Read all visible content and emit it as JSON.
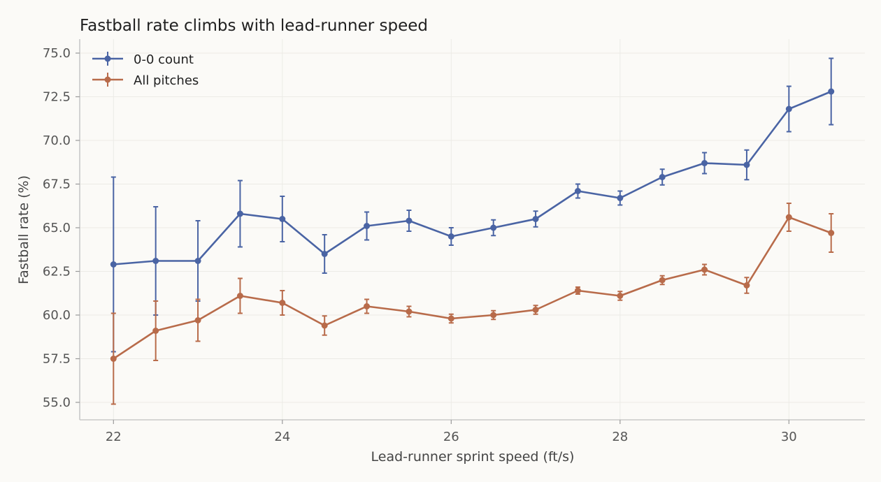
{
  "chart_data": {
    "type": "line",
    "title": "Fastball rate climbs with lead-runner speed",
    "xlabel": "Lead-runner sprint speed (ft/s)",
    "ylabel": "Fastball rate (%)",
    "xlim": [
      21.6,
      30.9
    ],
    "ylim": [
      54.0,
      75.8
    ],
    "xticks": [
      22,
      24,
      26,
      28,
      30
    ],
    "yticks": [
      55.0,
      57.5,
      60.0,
      62.5,
      65.0,
      67.5,
      70.0,
      72.5,
      75.0
    ],
    "grid": true,
    "legend_position": "top-left",
    "x": [
      22.0,
      22.5,
      23.0,
      23.5,
      24.0,
      24.5,
      25.0,
      25.5,
      26.0,
      26.5,
      27.0,
      27.5,
      28.0,
      28.5,
      29.0,
      29.5,
      30.0,
      30.5
    ],
    "series": [
      {
        "name": "0-0 count",
        "color": "#4a64a4",
        "values": [
          62.9,
          63.1,
          63.1,
          65.8,
          65.5,
          63.5,
          65.1,
          65.4,
          64.5,
          65.0,
          65.5,
          67.1,
          66.7,
          67.9,
          68.7,
          68.6,
          71.8,
          72.8
        ],
        "error": [
          5.0,
          3.1,
          2.3,
          1.9,
          1.3,
          1.1,
          0.8,
          0.6,
          0.5,
          0.45,
          0.45,
          0.4,
          0.4,
          0.45,
          0.6,
          0.85,
          1.3,
          1.9
        ]
      },
      {
        "name": "All pitches",
        "color": "#b86b4a",
        "values": [
          57.5,
          59.1,
          59.7,
          61.1,
          60.7,
          59.4,
          60.5,
          60.2,
          59.8,
          60.0,
          60.3,
          61.4,
          61.1,
          62.0,
          62.6,
          61.7,
          65.6,
          64.7
        ],
        "error": [
          2.6,
          1.7,
          1.2,
          1.0,
          0.7,
          0.55,
          0.4,
          0.3,
          0.25,
          0.25,
          0.25,
          0.2,
          0.25,
          0.25,
          0.3,
          0.45,
          0.8,
          1.1
        ]
      }
    ]
  }
}
